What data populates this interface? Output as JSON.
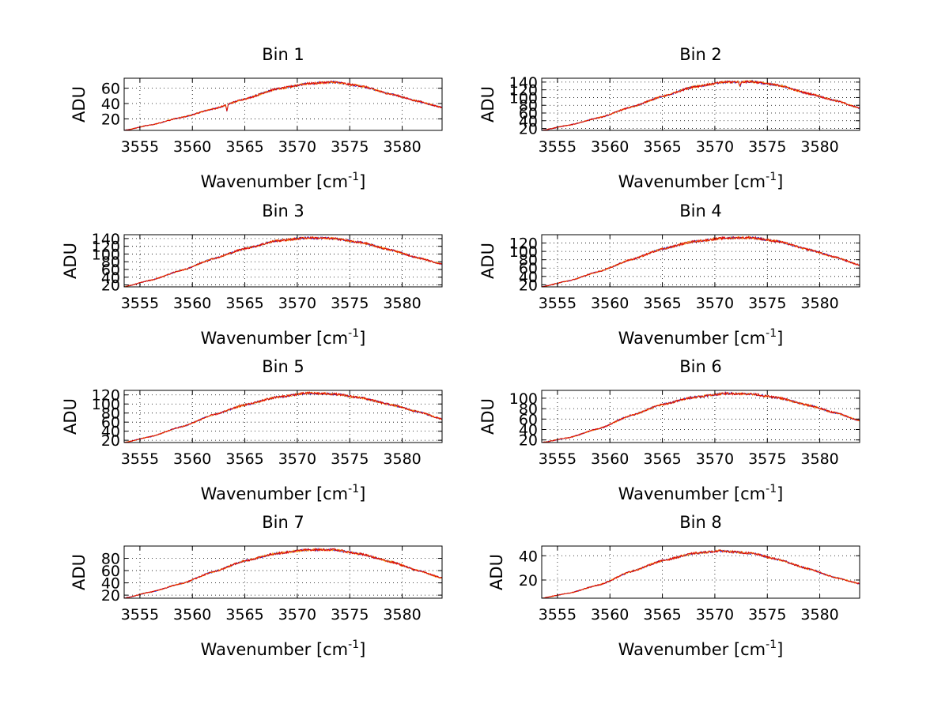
{
  "figure": {
    "background": "#ffffff"
  },
  "chart_data": [
    {
      "type": "line",
      "title": "Bin 1",
      "xlabel": "Wavenumber [cm",
      "xlabel_sup": "-1",
      "xlabel_suffix": "]",
      "ylabel": "ADU",
      "xlim": [
        3553.5,
        3583.8
      ],
      "ylim": [
        5,
        73
      ],
      "xticks": [
        3555,
        3560,
        3565,
        3570,
        3575,
        3580
      ],
      "yticks": [
        20,
        40,
        60
      ],
      "grid": true,
      "curve": {
        "x": [
          3553.5,
          3556,
          3559,
          3562,
          3565,
          3568,
          3571,
          3573.5,
          3576,
          3579,
          3581.5,
          3583.8
        ],
        "y": [
          5,
          12,
          22,
          33,
          46,
          59,
          66,
          68,
          63,
          52,
          43,
          35
        ]
      },
      "dips": [
        [
          3563.3,
          -9
        ]
      ],
      "series": [
        {
          "name": "blue",
          "color": "#1f1fd0"
        },
        {
          "name": "orange",
          "color": "#ff9900"
        },
        {
          "name": "red",
          "color": "#e00000"
        }
      ]
    },
    {
      "type": "line",
      "title": "Bin 2",
      "xlabel": "Wavenumber [cm",
      "xlabel_sup": "-1",
      "xlabel_suffix": "]",
      "ylabel": "ADU",
      "xlim": [
        3553.5,
        3583.8
      ],
      "ylim": [
        15,
        150
      ],
      "xticks": [
        3555,
        3560,
        3565,
        3570,
        3575,
        3580
      ],
      "yticks": [
        20,
        40,
        60,
        80,
        100,
        120,
        140
      ],
      "grid": true,
      "curve": {
        "x": [
          3553.5,
          3556,
          3559,
          3562,
          3565,
          3568,
          3571,
          3573.5,
          3576,
          3579,
          3581.5,
          3583.8
        ],
        "y": [
          15,
          28,
          48,
          75,
          103,
          128,
          140,
          141,
          132,
          110,
          92,
          73
        ]
      },
      "dips": [
        [
          3572.4,
          -14
        ]
      ],
      "series": [
        {
          "name": "blue",
          "color": "#1f1fd0"
        },
        {
          "name": "orange",
          "color": "#ff9900"
        },
        {
          "name": "red",
          "color": "#e00000"
        }
      ]
    },
    {
      "type": "line",
      "title": "Bin 3",
      "xlabel": "Wavenumber [cm",
      "xlabel_sup": "-1",
      "xlabel_suffix": "]",
      "ylabel": "ADU",
      "xlim": [
        3553.5,
        3583.8
      ],
      "ylim": [
        15,
        150
      ],
      "xticks": [
        3555,
        3560,
        3565,
        3570,
        3575,
        3580
      ],
      "yticks": [
        20,
        40,
        60,
        80,
        100,
        120,
        140
      ],
      "grid": true,
      "curve": {
        "x": [
          3553.5,
          3556,
          3559,
          3562,
          3565,
          3568,
          3571,
          3573.5,
          3576,
          3579,
          3581.5,
          3583.8
        ],
        "y": [
          15,
          32,
          58,
          88,
          114,
          134,
          142,
          140,
          130,
          110,
          90,
          74
        ]
      },
      "dips": [],
      "series": [
        {
          "name": "blue",
          "color": "#1f1fd0"
        },
        {
          "name": "orange",
          "color": "#ff9900"
        },
        {
          "name": "red",
          "color": "#e00000"
        }
      ]
    },
    {
      "type": "line",
      "title": "Bin 4",
      "xlabel": "Wavenumber [cm",
      "xlabel_sup": "-1",
      "xlabel_suffix": "]",
      "ylabel": "ADU",
      "xlim": [
        3553.5,
        3583.8
      ],
      "ylim": [
        15,
        140
      ],
      "xticks": [
        3555,
        3560,
        3565,
        3570,
        3575,
        3580
      ],
      "yticks": [
        20,
        40,
        60,
        80,
        100,
        120
      ],
      "grid": true,
      "curve": {
        "x": [
          3553.5,
          3556,
          3559,
          3562,
          3565,
          3568,
          3571,
          3573.5,
          3576,
          3579,
          3581.5,
          3583.8
        ],
        "y": [
          15,
          29,
          52,
          80,
          106,
          124,
          132,
          133,
          124,
          104,
          86,
          67
        ]
      },
      "dips": [],
      "series": [
        {
          "name": "blue",
          "color": "#1f1fd0"
        },
        {
          "name": "orange",
          "color": "#ff9900"
        },
        {
          "name": "red",
          "color": "#e00000"
        }
      ]
    },
    {
      "type": "line",
      "title": "Bin 5",
      "xlabel": "Wavenumber [cm",
      "xlabel_sup": "-1",
      "xlabel_suffix": "]",
      "ylabel": "ADU",
      "xlim": [
        3553.5,
        3583.8
      ],
      "ylim": [
        15,
        130
      ],
      "xticks": [
        3555,
        3560,
        3565,
        3570,
        3575,
        3580
      ],
      "yticks": [
        20,
        40,
        60,
        80,
        100,
        120
      ],
      "grid": true,
      "curve": {
        "x": [
          3553.5,
          3556,
          3559,
          3562,
          3565,
          3568,
          3571,
          3573.5,
          3576,
          3579,
          3581.5,
          3583.8
        ],
        "y": [
          15,
          28,
          50,
          76,
          98,
          115,
          124,
          122,
          114,
          98,
          83,
          67
        ]
      },
      "dips": [],
      "series": [
        {
          "name": "blue",
          "color": "#1f1fd0"
        },
        {
          "name": "orange",
          "color": "#ff9900"
        },
        {
          "name": "red",
          "color": "#e00000"
        }
      ]
    },
    {
      "type": "line",
      "title": "Bin 6",
      "xlabel": "Wavenumber [cm",
      "xlabel_sup": "-1",
      "xlabel_suffix": "]",
      "ylabel": "ADU",
      "xlim": [
        3553.5,
        3583.8
      ],
      "ylim": [
        15,
        115
      ],
      "xticks": [
        3555,
        3560,
        3565,
        3570,
        3575,
        3580
      ],
      "yticks": [
        20,
        40,
        60,
        80,
        100
      ],
      "grid": true,
      "curve": {
        "x": [
          3553.5,
          3556,
          3559,
          3562,
          3565,
          3568,
          3571,
          3573.5,
          3576,
          3579,
          3581.5,
          3583.8
        ],
        "y": [
          15,
          24,
          42,
          67,
          88,
          102,
          109,
          108,
          101,
          86,
          72,
          57
        ]
      },
      "dips": [],
      "series": [
        {
          "name": "blue",
          "color": "#1f1fd0"
        },
        {
          "name": "orange",
          "color": "#ff9900"
        },
        {
          "name": "red",
          "color": "#e00000"
        }
      ]
    },
    {
      "type": "line",
      "title": "Bin 7",
      "xlabel": "Wavenumber [cm",
      "xlabel_sup": "-1",
      "xlabel_suffix": "]",
      "ylabel": "ADU",
      "xlim": [
        3553.5,
        3583.8
      ],
      "ylim": [
        15,
        100
      ],
      "xticks": [
        3555,
        3560,
        3565,
        3570,
        3575,
        3580
      ],
      "yticks": [
        20,
        40,
        60,
        80
      ],
      "grid": true,
      "curve": {
        "x": [
          3553.5,
          3556,
          3559,
          3562,
          3565,
          3568,
          3571,
          3573.5,
          3576,
          3579,
          3581.5,
          3583.8
        ],
        "y": [
          15,
          25,
          39,
          58,
          76,
          88,
          94,
          94,
          87,
          74,
          60,
          48
        ]
      },
      "dips": [],
      "series": [
        {
          "name": "blue",
          "color": "#1f1fd0"
        },
        {
          "name": "orange",
          "color": "#ff9900"
        },
        {
          "name": "red",
          "color": "#e00000"
        }
      ]
    },
    {
      "type": "line",
      "title": "Bin 8",
      "xlabel": "Wavenumber [cm",
      "xlabel_sup": "-1",
      "xlabel_suffix": "]",
      "ylabel": "ADU",
      "xlim": [
        3553.5,
        3583.8
      ],
      "ylim": [
        5,
        48
      ],
      "xticks": [
        3555,
        3560,
        3565,
        3570,
        3575,
        3580
      ],
      "yticks": [
        20,
        40
      ],
      "grid": true,
      "curve": {
        "x": [
          3553.5,
          3556,
          3559,
          3562,
          3565,
          3568,
          3570.5,
          3573.5,
          3576,
          3579,
          3581.5,
          3583.8
        ],
        "y": [
          5,
          9,
          16,
          27,
          36,
          42,
          44,
          42,
          37,
          29,
          22,
          17
        ]
      },
      "dips": [],
      "series": [
        {
          "name": "blue",
          "color": "#1f1fd0"
        },
        {
          "name": "orange",
          "color": "#ff9900"
        },
        {
          "name": "red",
          "color": "#e00000"
        }
      ]
    }
  ]
}
